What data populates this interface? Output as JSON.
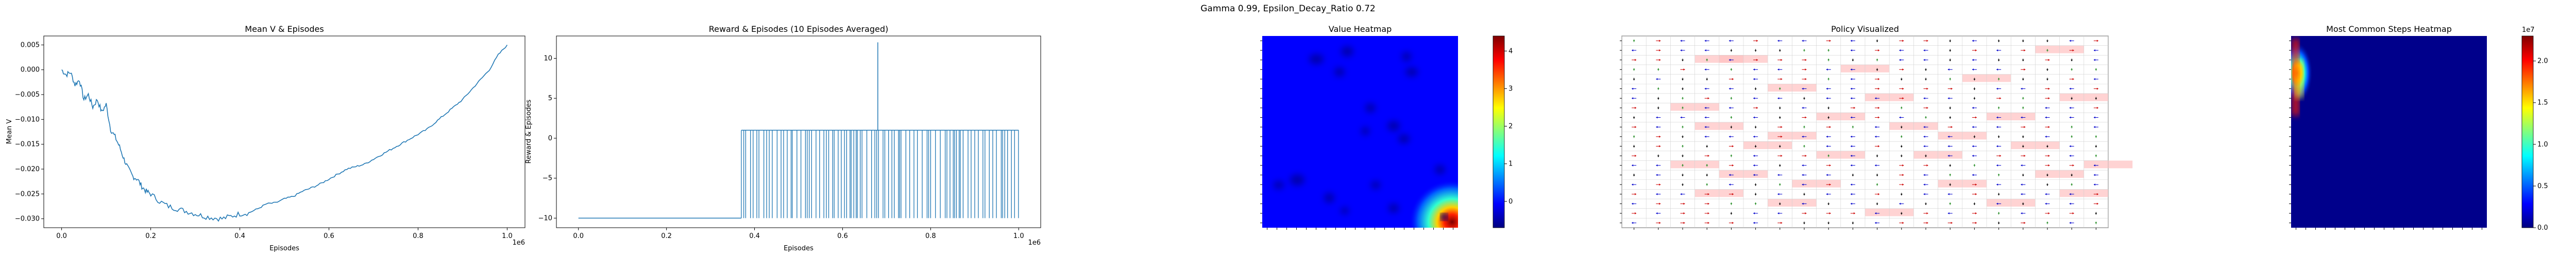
{
  "suptitle": "Gamma  0.99, Epsilon_Decay_Ratio 0.72",
  "chart_data": [
    {
      "type": "line",
      "title": "Mean V & Episodes",
      "xlabel": "Episodes",
      "ylabel": "Mean V",
      "x_offset_label": "1e6",
      "xlim": [
        -40000,
        1040000
      ],
      "ylim": [
        -0.0318,
        0.0068
      ],
      "xticks": [
        0,
        200000,
        400000,
        600000,
        800000,
        1000000
      ],
      "xtick_labels": [
        "0.0",
        "0.2",
        "0.4",
        "0.6",
        "0.8",
        "1.0"
      ],
      "yticks": [
        -0.03,
        -0.025,
        -0.02,
        -0.015,
        -0.01,
        -0.005,
        0.0,
        0.005
      ],
      "ytick_labels": [
        "−0.030",
        "−0.025",
        "−0.020",
        "−0.015",
        "−0.010",
        "−0.005",
        "0.000",
        "0.005"
      ],
      "color": "#1f77b4",
      "points": [
        [
          0,
          0.0
        ],
        [
          10000,
          -0.001
        ],
        [
          20000,
          -0.0005
        ],
        [
          30000,
          -0.003
        ],
        [
          40000,
          -0.002
        ],
        [
          50000,
          -0.006
        ],
        [
          60000,
          -0.005
        ],
        [
          70000,
          -0.0075
        ],
        [
          80000,
          -0.006
        ],
        [
          90000,
          -0.0085
        ],
        [
          100000,
          -0.007
        ],
        [
          110000,
          -0.012
        ],
        [
          120000,
          -0.0135
        ],
        [
          130000,
          -0.0155
        ],
        [
          140000,
          -0.018
        ],
        [
          150000,
          -0.02
        ],
        [
          160000,
          -0.0215
        ],
        [
          170000,
          -0.022
        ],
        [
          180000,
          -0.0235
        ],
        [
          190000,
          -0.0245
        ],
        [
          200000,
          -0.025
        ],
        [
          220000,
          -0.0265
        ],
        [
          240000,
          -0.0275
        ],
        [
          260000,
          -0.028
        ],
        [
          280000,
          -0.0285
        ],
        [
          300000,
          -0.029
        ],
        [
          320000,
          -0.0295
        ],
        [
          340000,
          -0.0298
        ],
        [
          360000,
          -0.03
        ],
        [
          380000,
          -0.0295
        ],
        [
          400000,
          -0.029
        ],
        [
          420000,
          -0.0288
        ],
        [
          440000,
          -0.028
        ],
        [
          460000,
          -0.027
        ],
        [
          480000,
          -0.0268
        ],
        [
          500000,
          -0.026
        ],
        [
          520000,
          -0.0255
        ],
        [
          540000,
          -0.0245
        ],
        [
          560000,
          -0.0238
        ],
        [
          580000,
          -0.023
        ],
        [
          600000,
          -0.022
        ],
        [
          620000,
          -0.021
        ],
        [
          640000,
          -0.02
        ],
        [
          660000,
          -0.0195
        ],
        [
          680000,
          -0.019
        ],
        [
          700000,
          -0.018
        ],
        [
          720000,
          -0.017
        ],
        [
          740000,
          -0.016
        ],
        [
          760000,
          -0.015
        ],
        [
          780000,
          -0.014
        ],
        [
          800000,
          -0.013
        ],
        [
          820000,
          -0.012
        ],
        [
          840000,
          -0.0105
        ],
        [
          860000,
          -0.009
        ],
        [
          880000,
          -0.0075
        ],
        [
          900000,
          -0.006
        ],
        [
          920000,
          -0.004
        ],
        [
          940000,
          -0.002
        ],
        [
          960000,
          0.0
        ],
        [
          980000,
          0.003
        ],
        [
          1000000,
          0.005
        ]
      ]
    },
    {
      "type": "line",
      "title": "Reward & Episodes (10 Episodes Averaged)",
      "xlabel": "Episodes",
      "ylabel": "Reward & Episodes",
      "x_offset_label": "1e6",
      "xlim": [
        -50000,
        1050000
      ],
      "ylim": [
        -11.2,
        12.8
      ],
      "xticks": [
        0,
        200000,
        400000,
        600000,
        800000,
        1000000
      ],
      "xtick_labels": [
        "0.0",
        "0.2",
        "0.4",
        "0.6",
        "0.8",
        "1.0"
      ],
      "yticks": [
        -10,
        -5,
        0,
        5,
        10
      ],
      "ytick_labels": [
        "−10",
        "−5",
        "0",
        "5",
        "10"
      ],
      "color": "#1f77b4",
      "baseline_value": -10,
      "high_value": 1,
      "baseline_segment": [
        0,
        370000
      ],
      "spike_region": [
        370000,
        1000000
      ],
      "peak": {
        "x": 680000,
        "value": 12
      }
    },
    {
      "type": "heatmap",
      "title": "Value Heatmap",
      "colorbar_ticks": [
        0,
        1,
        2,
        3,
        4
      ],
      "colorbar_range": [
        -0.7,
        4.4
      ],
      "colormap": "jet"
    },
    {
      "type": "heatmap",
      "title": "Policy Visualized",
      "grid_size": 20,
      "arrow_colors": {
        "up": "#228b22",
        "down": "#000000",
        "left": "#0000cc",
        "right": "#cc0000"
      }
    },
    {
      "type": "heatmap",
      "title": "Most Common Steps Heatmap",
      "colorbar_ticks": [
        0.0,
        0.5,
        1.0,
        1.5,
        2.0
      ],
      "colorbar_tick_labels": [
        "0.0",
        "0.5",
        "1.0",
        "1.5",
        "2.0"
      ],
      "colorbar_offset_label": "1e7",
      "colorbar_range": [
        0,
        2.3
      ],
      "colormap": "jet"
    }
  ]
}
